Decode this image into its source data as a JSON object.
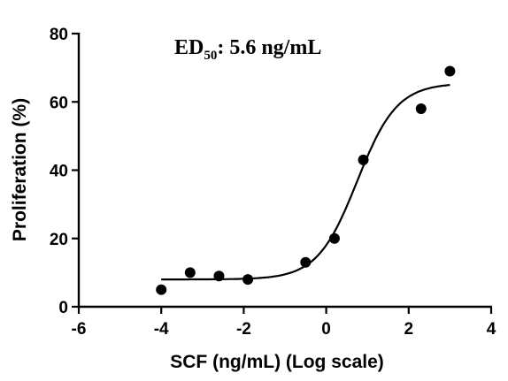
{
  "chart_data": {
    "type": "scatter",
    "title": "",
    "annotation": {
      "prefix": "ED",
      "subscript": "50",
      "suffix": ": 5.6 ng/mL"
    },
    "xlabel": "SCF (ng/mL) (Log scale)",
    "ylabel": "Proliferation (%)",
    "xlim": [
      -6,
      4
    ],
    "ylim": [
      0,
      80
    ],
    "x_ticks": [
      -6,
      -4,
      -2,
      0,
      2,
      4
    ],
    "y_ticks": [
      0,
      20,
      40,
      60,
      80
    ],
    "x_tick_labels": [
      "-6",
      "-4",
      "-2",
      "0",
      "2",
      "4"
    ],
    "y_tick_labels": [
      "0",
      "20",
      "40",
      "60",
      "80"
    ],
    "grid": false,
    "legend": "none",
    "series": [
      {
        "points": [
          {
            "x": -4.0,
            "y": 5
          },
          {
            "x": -3.3,
            "y": 10
          },
          {
            "x": -2.6,
            "y": 9
          },
          {
            "x": -1.9,
            "y": 8
          },
          {
            "x": -0.5,
            "y": 13
          },
          {
            "x": 0.2,
            "y": 20
          },
          {
            "x": 0.9,
            "y": 43
          },
          {
            "x": 2.3,
            "y": 58
          },
          {
            "x": 3.0,
            "y": 69
          }
        ]
      }
    ],
    "fit": {
      "type": "sigmoid",
      "bottom": 8,
      "top": 65.5,
      "log_ec50": 0.75,
      "hill_slope": 0.9,
      "x_range": [
        -4.0,
        3.0
      ]
    }
  }
}
